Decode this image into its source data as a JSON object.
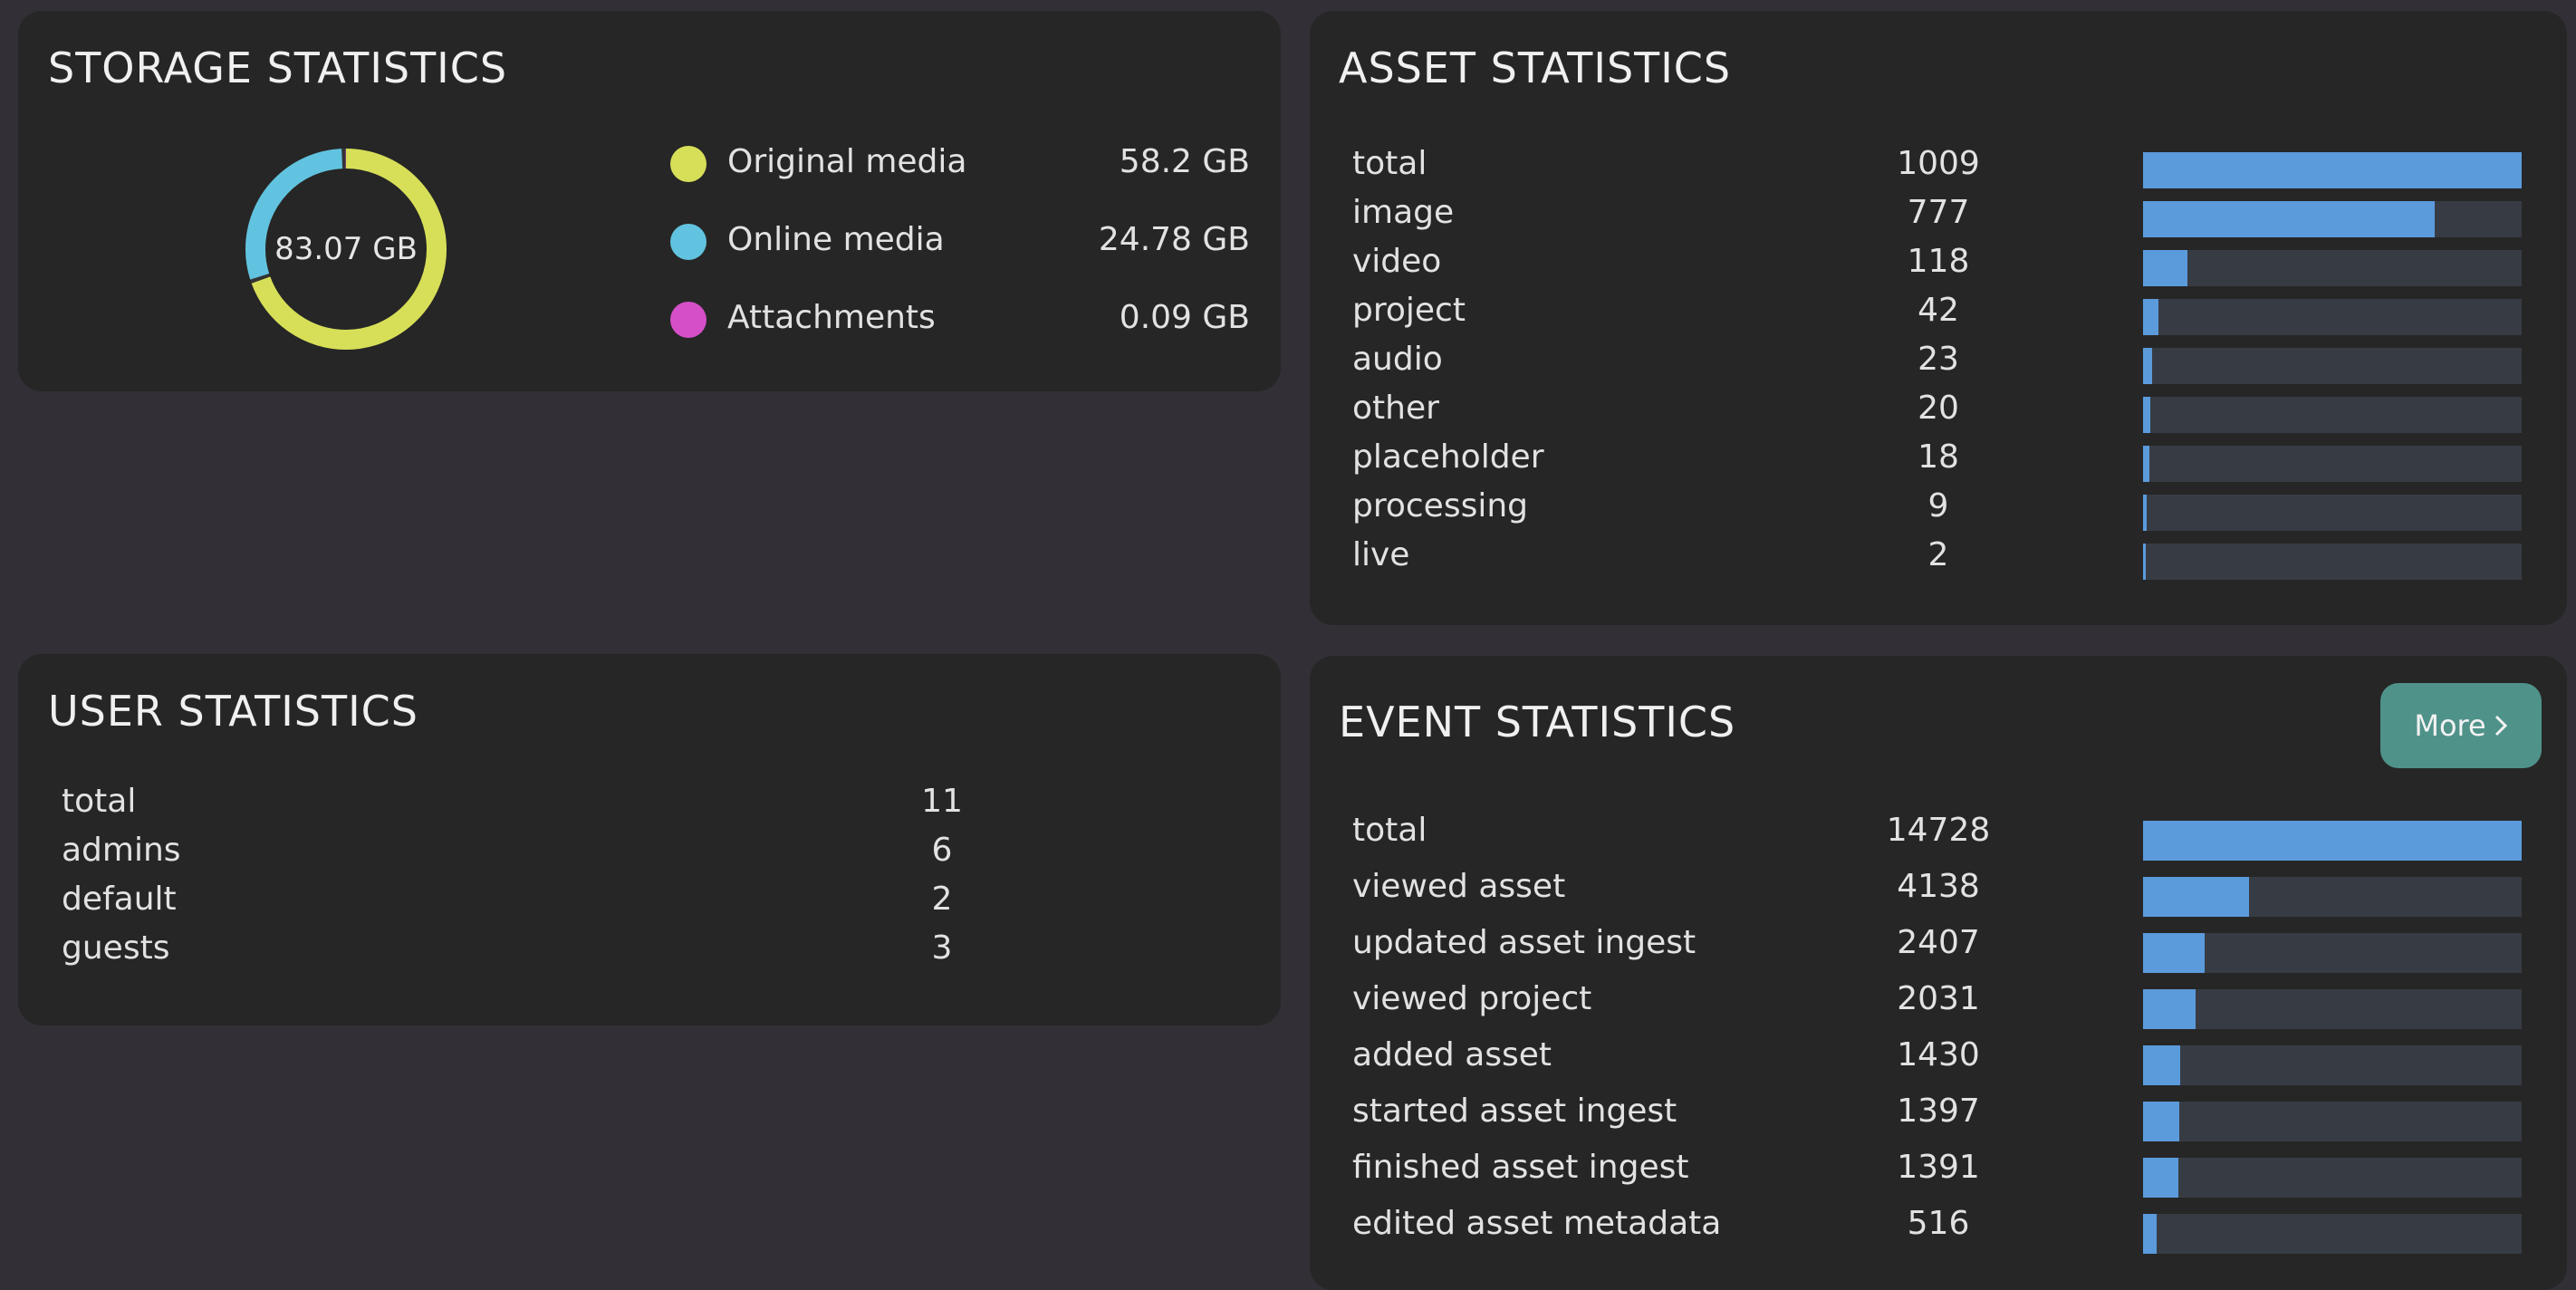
{
  "storage": {
    "title": "STORAGE STATISTICS",
    "total": "83.07 GB",
    "items": [
      {
        "label": "Original media",
        "value": "58.2 GB",
        "gb": 58.2,
        "color": "#d7df58"
      },
      {
        "label": "Online media",
        "value": "24.78 GB",
        "gb": 24.78,
        "color": "#61c3df"
      },
      {
        "label": "Attachments",
        "value": "0.09 GB",
        "gb": 0.09,
        "color": "#d54fc9"
      }
    ]
  },
  "assets": {
    "title": "ASSET STATISTICS",
    "rows": [
      {
        "label": "total",
        "value": "1009",
        "count": 1009
      },
      {
        "label": "image",
        "value": "777",
        "count": 777
      },
      {
        "label": "video",
        "value": "118",
        "count": 118
      },
      {
        "label": "project",
        "value": "42",
        "count": 42
      },
      {
        "label": "audio",
        "value": "23",
        "count": 23
      },
      {
        "label": "other",
        "value": "20",
        "count": 20
      },
      {
        "label": "placeholder",
        "value": "18",
        "count": 18
      },
      {
        "label": "processing",
        "value": "9",
        "count": 9
      },
      {
        "label": "live",
        "value": "2",
        "count": 2
      }
    ]
  },
  "users": {
    "title": "USER STATISTICS",
    "rows": [
      {
        "label": "total",
        "value": "11"
      },
      {
        "label": "admins",
        "value": "6"
      },
      {
        "label": "default",
        "value": "2"
      },
      {
        "label": "guests",
        "value": "3"
      }
    ]
  },
  "events": {
    "title": "EVENT STATISTICS",
    "more_label": "More",
    "rows": [
      {
        "label": "total",
        "value": "14728",
        "count": 14728
      },
      {
        "label": "viewed asset",
        "value": "4138",
        "count": 4138
      },
      {
        "label": "updated asset ingest",
        "value": "2407",
        "count": 2407
      },
      {
        "label": "viewed project",
        "value": "2031",
        "count": 2031
      },
      {
        "label": "added asset",
        "value": "1430",
        "count": 1430
      },
      {
        "label": "started asset ingest",
        "value": "1397",
        "count": 1397
      },
      {
        "label": "finished asset ingest",
        "value": "1391",
        "count": 1391
      },
      {
        "label": "edited asset metadata",
        "value": "516",
        "count": 516
      }
    ]
  },
  "colors": {
    "bar_fill": "#5b9bdc",
    "bar_track": "#373c44",
    "more_button": "#4f9289"
  }
}
